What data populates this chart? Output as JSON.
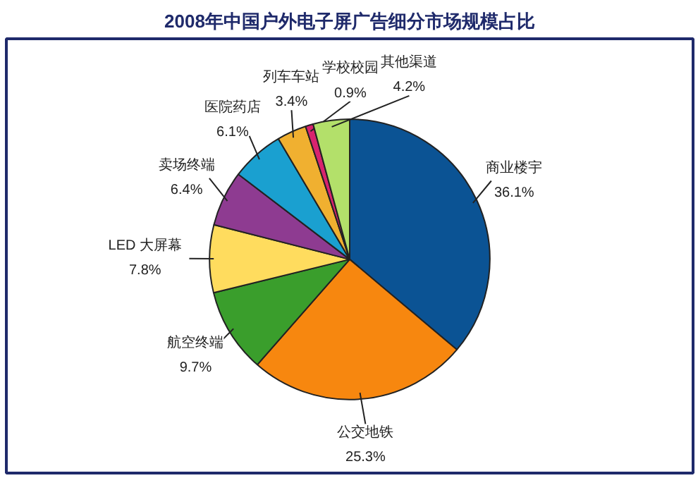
{
  "chart_data": {
    "type": "pie",
    "title": "2008年中国户外电子屏广告细分市场规模占比",
    "categories": [
      "商业楼宇",
      "公交地铁",
      "航空终端",
      "LED 大屏幕",
      "卖场终端",
      "医院药店",
      "列车车站",
      "学校校园",
      "其他渠道"
    ],
    "values": [
      36.1,
      25.3,
      9.7,
      7.8,
      6.4,
      6.1,
      3.4,
      0.9,
      4.2
    ],
    "colors": [
      "#0b5394",
      "#f7870f",
      "#3a9e2c",
      "#ffdc5e",
      "#8e3b91",
      "#1aa0d0",
      "#f0b030",
      "#d8236e",
      "#b3e06a"
    ],
    "value_labels": [
      "36.1%",
      "25.3%",
      "9.7%",
      "7.8%",
      "6.4%",
      "6.1%",
      "3.4%",
      "0.9%",
      "4.2%"
    ]
  }
}
